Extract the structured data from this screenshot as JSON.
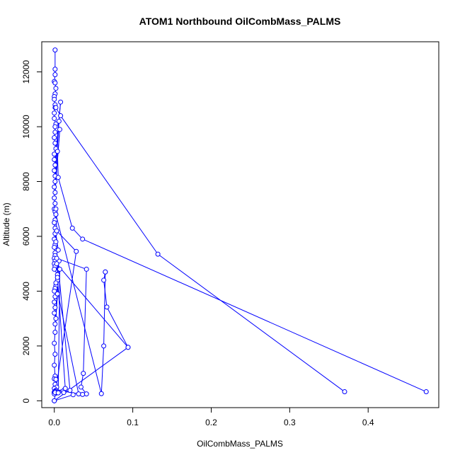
{
  "chart_data": {
    "type": "line",
    "title": "ATOM1 Northbound OilCombMass_PALMS",
    "xlabel": "OilCombMass_PALMS",
    "ylabel": "Altitude (m)",
    "xlim": [
      -0.016,
      0.49
    ],
    "ylim": [
      -250,
      13100
    ],
    "xticks": [
      0.0,
      0.1,
      0.2,
      0.3,
      0.4
    ],
    "xtick_labels": [
      "0.0",
      "0.1",
      "0.2",
      "0.3",
      "0.4"
    ],
    "yticks": [
      0,
      2000,
      4000,
      6000,
      8000,
      10000,
      12000
    ],
    "ytick_labels": [
      "0",
      "2000",
      "4000",
      "6000",
      "8000",
      "10000",
      "12000"
    ],
    "grid": false,
    "legend": "none",
    "color": "#0000ff",
    "series": [
      {
        "x": [
          0.001,
          0.001,
          0.001,
          0.0,
          0.001,
          0.002,
          0.001,
          0.0,
          0.0,
          0.001,
          0.001,
          0.0,
          0.0,
          0.002,
          0.001,
          0.001,
          0.0,
          0.001,
          0.002,
          0.0,
          0.0,
          0.001,
          0.008,
          0.0,
          0.001,
          0.006,
          0.001,
          0.0,
          0.001,
          0.007,
          0.0,
          0.001,
          0.0,
          0.001,
          0.002,
          0.001,
          0.0,
          0.001,
          0.005,
          0.001,
          0.0,
          0.001,
          0.0,
          0.001,
          0.001,
          0.0,
          0.001,
          0.0,
          0.001,
          0.0,
          0.004,
          0.004,
          0.002,
          0.001,
          0.0,
          0.006,
          0.001,
          0.0,
          0.001,
          0.0,
          0.002,
          0.006,
          0.001,
          0.004,
          0.001,
          0.0,
          0.001,
          0.0,
          0.001,
          0.0,
          0.002,
          0.001,
          0.003,
          0.0,
          0.002,
          0.013,
          0.001,
          0.0,
          0.001,
          0.0,
          0.002,
          0.001,
          0.0,
          0.001,
          0.0,
          0.001
        ],
        "y": [
          12800,
          12100,
          11900,
          11650,
          11600,
          11400,
          11200,
          11100,
          11000,
          10800,
          10700,
          10500,
          10300,
          10100,
          10000,
          9800,
          9600,
          9400,
          9200,
          9000,
          8800,
          8600,
          10900,
          8400,
          8200,
          10200,
          8000,
          7800,
          7600,
          9900,
          7400,
          7200,
          7000,
          6900,
          6800,
          6600,
          6500,
          6300,
          5500,
          6100,
          5900,
          5700,
          5600,
          5400,
          5300,
          5200,
          5100,
          5000,
          4900,
          4800,
          4600,
          4400,
          4200,
          4100,
          4000,
          5100,
          3800,
          3600,
          3400,
          3200,
          3000,
          4800,
          2800,
          3900,
          2500,
          2100,
          1700,
          1300,
          900,
          800,
          780,
          600,
          500,
          450,
          380,
          400,
          350,
          320,
          300,
          290,
          280,
          270,
          300,
          330,
          250,
          300
        ]
      },
      {
        "x": [
          0.002,
          0.008,
          0.132,
          0.37
        ],
        "y": [
          10700,
          10400,
          5350,
          330
        ]
      },
      {
        "x": [
          0.004,
          0.005,
          0.023,
          0.036,
          0.474
        ],
        "y": [
          9100,
          8150,
          6300,
          5900,
          330
        ]
      },
      {
        "x": [
          0.002,
          0.003,
          0.028,
          0.0
        ],
        "y": [
          7000,
          6200,
          5450,
          0.0
        ]
      },
      {
        "x": [
          0.003,
          0.094,
          0.0
        ],
        "y": [
          5000,
          1950,
          0.0
        ]
      },
      {
        "x": [
          0.002,
          0.02,
          0.024,
          0.0
        ],
        "y": [
          5800,
          380,
          220,
          0.0
        ]
      },
      {
        "x": [
          0.065,
          0.063,
          0.067,
          0.094
        ],
        "y": [
          4700,
          4400,
          3420,
          1950
        ]
      },
      {
        "x": [
          0.003,
          0.041,
          0.037,
          0.034,
          0.041
        ],
        "y": [
          5200,
          4800,
          1000,
          500,
          250
        ]
      },
      {
        "x": [
          0.002,
          0.06,
          0.063,
          0.065
        ],
        "y": [
          6800,
          260,
          2000,
          4700
        ]
      },
      {
        "x": [
          0.002,
          0.031,
          0.036,
          0.011
        ],
        "y": [
          4300,
          250,
          230,
          350
        ]
      },
      {
        "x": [
          0.004,
          0.014,
          0.012
        ],
        "y": [
          4500,
          450,
          300
        ]
      },
      {
        "x": [
          0.001,
          0.005,
          0.007
        ],
        "y": [
          300,
          290,
          4800
        ]
      }
    ]
  }
}
